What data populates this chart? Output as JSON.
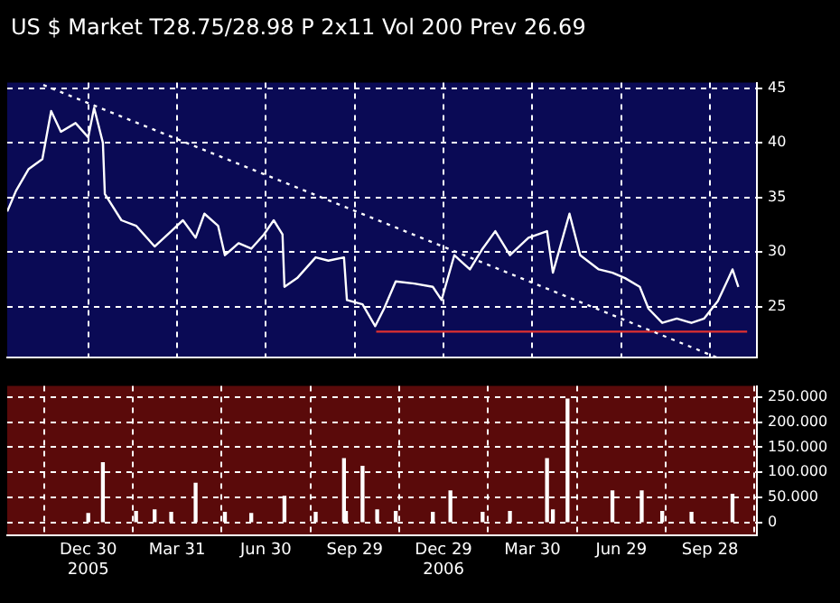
{
  "chart_data": [
    {
      "type": "line",
      "title": "US $ Market T28.75/28.98 P 2x11 Vol 200 Prev 26.69",
      "x": [
        "2005-10-08",
        "2005-10-17",
        "2005-10-30",
        "2005-11-13",
        "2005-11-22",
        "2005-12-02",
        "2005-12-17",
        "2005-12-30",
        "2006-01-05",
        "2006-01-14",
        "2006-01-16",
        "2006-02-02",
        "2006-02-17",
        "2006-03-08",
        "2006-03-25",
        "2006-04-06",
        "2006-04-19",
        "2006-04-28",
        "2006-05-12",
        "2006-05-19",
        "2006-06-02",
        "2006-06-15",
        "2006-06-28",
        "2006-07-08",
        "2006-07-17",
        "2006-07-19",
        "2006-08-01",
        "2006-08-20",
        "2006-09-02",
        "2006-09-18",
        "2006-09-21",
        "2006-10-07",
        "2006-10-20",
        "2006-10-29",
        "2006-11-10",
        "2006-11-29",
        "2006-12-18",
        "2006-12-27",
        "2007-01-09",
        "2007-01-25",
        "2007-02-07",
        "2007-02-20",
        "2007-03-07",
        "2007-03-26",
        "2007-04-14",
        "2007-04-20",
        "2007-05-07",
        "2007-05-18",
        "2007-06-06",
        "2007-06-20",
        "2007-07-03",
        "2007-07-18",
        "2007-07-27",
        "2007-08-10",
        "2007-08-25",
        "2007-09-09",
        "2007-09-22",
        "2007-10-06",
        "2007-10-17",
        "2007-10-21",
        "2007-10-27"
      ],
      "series": [
        {
          "color": "#ffffff",
          "values": [
            33.7,
            35.6,
            37.6,
            38.5,
            42.9,
            41.0,
            41.8,
            40.5,
            43.2,
            40.0,
            35.3,
            32.9,
            32.4,
            30.5,
            31.9,
            32.9,
            31.3,
            33.5,
            32.4,
            29.7,
            30.8,
            30.3,
            31.6,
            32.9,
            31.6,
            26.8,
            27.6,
            29.5,
            29.2,
            29.5,
            25.6,
            25.2,
            23.2,
            24.8,
            27.3,
            27.1,
            26.8,
            25.6,
            29.7,
            28.4,
            30.3,
            31.9,
            29.7,
            31.3,
            31.9,
            28.1,
            33.5,
            29.7,
            28.4,
            28.1,
            27.6,
            26.8,
            24.8,
            23.5,
            23.9,
            23.5,
            23.9,
            25.5,
            27.6,
            28.4,
            26.8
          ]
        },
        {
          "type": "line",
          "color": "#ffffff",
          "line_style": "dotted",
          "x": [
            "2005-11-14",
            "2007-10-06"
          ],
          "values": [
            45.3,
            20.3
          ]
        },
        {
          "type": "line",
          "color": "#e03030",
          "line_style": "solid",
          "x": [
            "2006-10-21",
            "2007-11-05"
          ],
          "values": [
            22.7,
            22.7
          ]
        }
      ],
      "xlim": [
        "2005-10-08",
        "2007-11-15"
      ],
      "xticks": [
        {
          "value": "2005-12-30",
          "label": null
        },
        {
          "value": "2006-03-31",
          "label": null
        },
        {
          "value": "2006-06-30",
          "label": null
        },
        {
          "value": "2006-09-29",
          "label": null
        },
        {
          "value": "2006-12-29",
          "label": null
        },
        {
          "value": "2007-03-30",
          "label": null
        },
        {
          "value": "2007-06-29",
          "label": null
        },
        {
          "value": "2007-09-28",
          "label": null
        }
      ],
      "ylim": [
        20.3,
        45.5
      ],
      "yticks": [
        25,
        30,
        35,
        40,
        45
      ],
      "grid": true,
      "tick_labels": "y",
      "legend": false
    },
    {
      "type": "bar",
      "x": [
        "2005-12-30",
        "2006-01-14",
        "2006-02-17",
        "2006-03-08",
        "2006-03-25",
        "2006-04-19",
        "2006-05-19",
        "2006-06-15",
        "2006-07-19",
        "2006-08-20",
        "2006-09-18",
        "2006-09-20",
        "2006-10-07",
        "2006-10-22",
        "2006-11-10",
        "2006-12-18",
        "2007-01-05",
        "2007-02-07",
        "2007-03-07",
        "2007-04-14",
        "2007-04-20",
        "2007-05-05",
        "2007-06-20",
        "2007-07-20",
        "2007-08-10",
        "2007-09-09",
        "2007-10-21"
      ],
      "series": [
        {
          "color": "#ffffff",
          "values": [
            18,
            119,
            22,
            25,
            20,
            78,
            20,
            18,
            52,
            20,
            127,
            22,
            112,
            25,
            22,
            20,
            63,
            20,
            22,
            127,
            25,
            246,
            63,
            63,
            22,
            20,
            56
          ]
        }
      ],
      "xlim": [
        "2005-10-08",
        "2007-11-15"
      ],
      "xticks": [
        {
          "value": "2005-12-30",
          "label": "Dec 30\n2005"
        },
        {
          "value": "2006-03-31",
          "label": "Mar 31"
        },
        {
          "value": "2006-06-30",
          "label": "Jun 30"
        },
        {
          "value": "2006-09-29",
          "label": "Sep 29"
        },
        {
          "value": "2006-12-29",
          "label": "Dec 29\n2006"
        },
        {
          "value": "2007-03-30",
          "label": "Mar 30"
        },
        {
          "value": "2007-06-29",
          "label": "Jun 29"
        },
        {
          "value": "2007-09-28",
          "label": "Sep 28"
        }
      ],
      "ylim": [
        -25,
        272
      ],
      "yticks": [
        0,
        {
          "value": 50,
          "label": "50.000"
        },
        {
          "value": 100,
          "label": "100.000"
        },
        {
          "value": 150,
          "label": "150.000"
        },
        {
          "value": 200,
          "label": "200.000"
        },
        {
          "value": 250,
          "label": "250.000"
        }
      ],
      "grid": true,
      "legend": false
    }
  ]
}
